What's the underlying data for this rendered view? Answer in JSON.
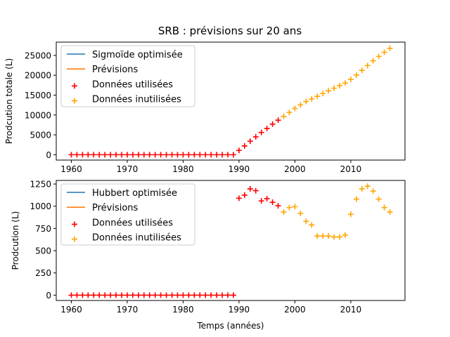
{
  "title": "SRB : prévisions sur 20 ans",
  "colors": {
    "fit": "#1f77b4",
    "forecast": "#ff7f0e",
    "used": "#ff0000",
    "unused": "#ffa500"
  },
  "chart_data": [
    {
      "type": "scatter",
      "title": "SRB : prévisions sur 20 ans",
      "xlabel": "",
      "ylabel": "Prodcution totale (L)",
      "xlim": [
        1957.3,
        2019.7
      ],
      "ylim": [
        -1350,
        28350
      ],
      "xticks": [
        1960,
        1970,
        1980,
        1990,
        2000,
        2010
      ],
      "yticks": [
        0,
        5000,
        10000,
        15000,
        20000,
        25000
      ],
      "legend": "upper-left",
      "legend_entries": [
        "Sigmoïde optimisée",
        "Prévisions",
        "Données utilisées",
        "Données inutilisées"
      ],
      "series": [
        {
          "name": "Données utilisées",
          "marker": "+",
          "color": "#ff0000",
          "x": [
            1960,
            1961,
            1962,
            1963,
            1964,
            1965,
            1966,
            1967,
            1968,
            1969,
            1970,
            1971,
            1972,
            1973,
            1974,
            1975,
            1976,
            1977,
            1978,
            1979,
            1980,
            1981,
            1982,
            1983,
            1984,
            1985,
            1986,
            1987,
            1988,
            1989,
            1990,
            1991,
            1992,
            1993,
            1994,
            1995,
            1996,
            1997
          ],
          "y": [
            0,
            0,
            0,
            0,
            0,
            0,
            0,
            0,
            0,
            0,
            0,
            0,
            0,
            0,
            0,
            0,
            0,
            0,
            0,
            0,
            0,
            0,
            0,
            0,
            0,
            0,
            0,
            0,
            0,
            0,
            1080,
            2200,
            3400,
            4500,
            5600,
            6600,
            7700,
            8700
          ]
        },
        {
          "name": "Données inutilisées",
          "marker": "+",
          "color": "#ffa500",
          "x": [
            1998,
            1999,
            2000,
            2001,
            2002,
            2003,
            2004,
            2005,
            2006,
            2007,
            2008,
            2009,
            2010,
            2011,
            2012,
            2013,
            2014,
            2015,
            2016,
            2017
          ],
          "y": [
            9650,
            10650,
            11650,
            12550,
            13400,
            14050,
            14700,
            15400,
            16100,
            16750,
            17400,
            18050,
            18950,
            20050,
            21250,
            22450,
            23650,
            24750,
            25800,
            26800
          ]
        }
      ]
    },
    {
      "type": "scatter",
      "title": "",
      "xlabel": "Temps (années)",
      "ylabel": "Prodcution (L)",
      "xlim": [
        1957.3,
        2019.7
      ],
      "ylim": [
        -60,
        1290
      ],
      "xticks": [
        1960,
        1970,
        1980,
        1990,
        2000,
        2010
      ],
      "yticks": [
        0,
        250,
        500,
        750,
        1000,
        1250
      ],
      "legend": "upper-left",
      "legend_entries": [
        "Hubbert optimisée",
        "Prévisions",
        "Données utilisées",
        "Données inutilisées"
      ],
      "series": [
        {
          "name": "Données utilisées",
          "marker": "+",
          "color": "#ff0000",
          "x": [
            1960,
            1961,
            1962,
            1963,
            1964,
            1965,
            1966,
            1967,
            1968,
            1969,
            1970,
            1971,
            1972,
            1973,
            1974,
            1975,
            1976,
            1977,
            1978,
            1979,
            1980,
            1981,
            1982,
            1983,
            1984,
            1985,
            1986,
            1987,
            1988,
            1989,
            1990,
            1991,
            1992,
            1993,
            1994,
            1995,
            1996,
            1997
          ],
          "y": [
            0,
            0,
            0,
            0,
            0,
            0,
            0,
            0,
            0,
            0,
            0,
            0,
            0,
            0,
            0,
            0,
            0,
            0,
            0,
            0,
            0,
            0,
            0,
            0,
            0,
            0,
            0,
            0,
            0,
            0,
            1090,
            1125,
            1195,
            1175,
            1060,
            1085,
            1045,
            1005
          ]
        },
        {
          "name": "Données inutilisées",
          "marker": "+",
          "color": "#ffa500",
          "x": [
            1998,
            1999,
            2000,
            2001,
            2002,
            2003,
            2004,
            2005,
            2006,
            2007,
            2008,
            2009,
            2010,
            2011,
            2012,
            2013,
            2014,
            2015,
            2016,
            2017
          ],
          "y": [
            935,
            985,
            995,
            920,
            830,
            790,
            665,
            665,
            665,
            655,
            655,
            675,
            910,
            1080,
            1195,
            1225,
            1170,
            1080,
            985,
            935
          ]
        }
      ]
    }
  ]
}
